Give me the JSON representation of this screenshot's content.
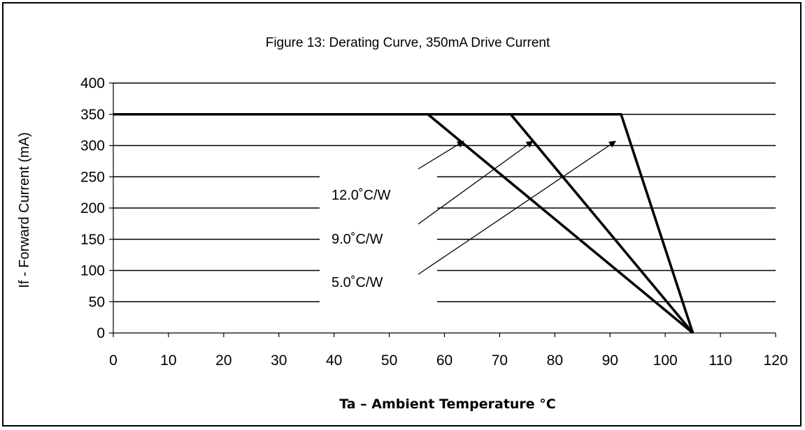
{
  "chart_data": {
    "type": "line",
    "title": "Figure 13:  Derating Curve, 350mA Drive Current",
    "xlabel": "Ta – Ambient Temperature °C",
    "ylabel": "If - Forward Current (mA)",
    "xlim": [
      0,
      120
    ],
    "ylim": [
      0,
      400
    ],
    "x_ticks": [
      0,
      10,
      20,
      30,
      40,
      50,
      60,
      70,
      80,
      90,
      100,
      110,
      120
    ],
    "y_ticks": [
      0,
      50,
      100,
      150,
      200,
      250,
      300,
      350,
      400
    ],
    "grid": true,
    "series": [
      {
        "name": "12.0˚C/W",
        "x": [
          0,
          57,
          105
        ],
        "y": [
          350,
          350,
          0
        ]
      },
      {
        "name": "9.0˚C/W",
        "x": [
          0,
          72,
          105
        ],
        "y": [
          350,
          350,
          0
        ]
      },
      {
        "name": "5.0˚C/W",
        "x": [
          0,
          92,
          105
        ],
        "y": [
          350,
          350,
          0
        ]
      }
    ],
    "annotations": [
      {
        "text": "12.0˚C/W",
        "target_x": 63.5,
        "target_y": 307
      },
      {
        "text": "9.0˚C/W",
        "target_x": 76,
        "target_y": 307
      },
      {
        "text": "5.0˚C/W",
        "target_x": 91,
        "target_y": 307
      }
    ]
  }
}
